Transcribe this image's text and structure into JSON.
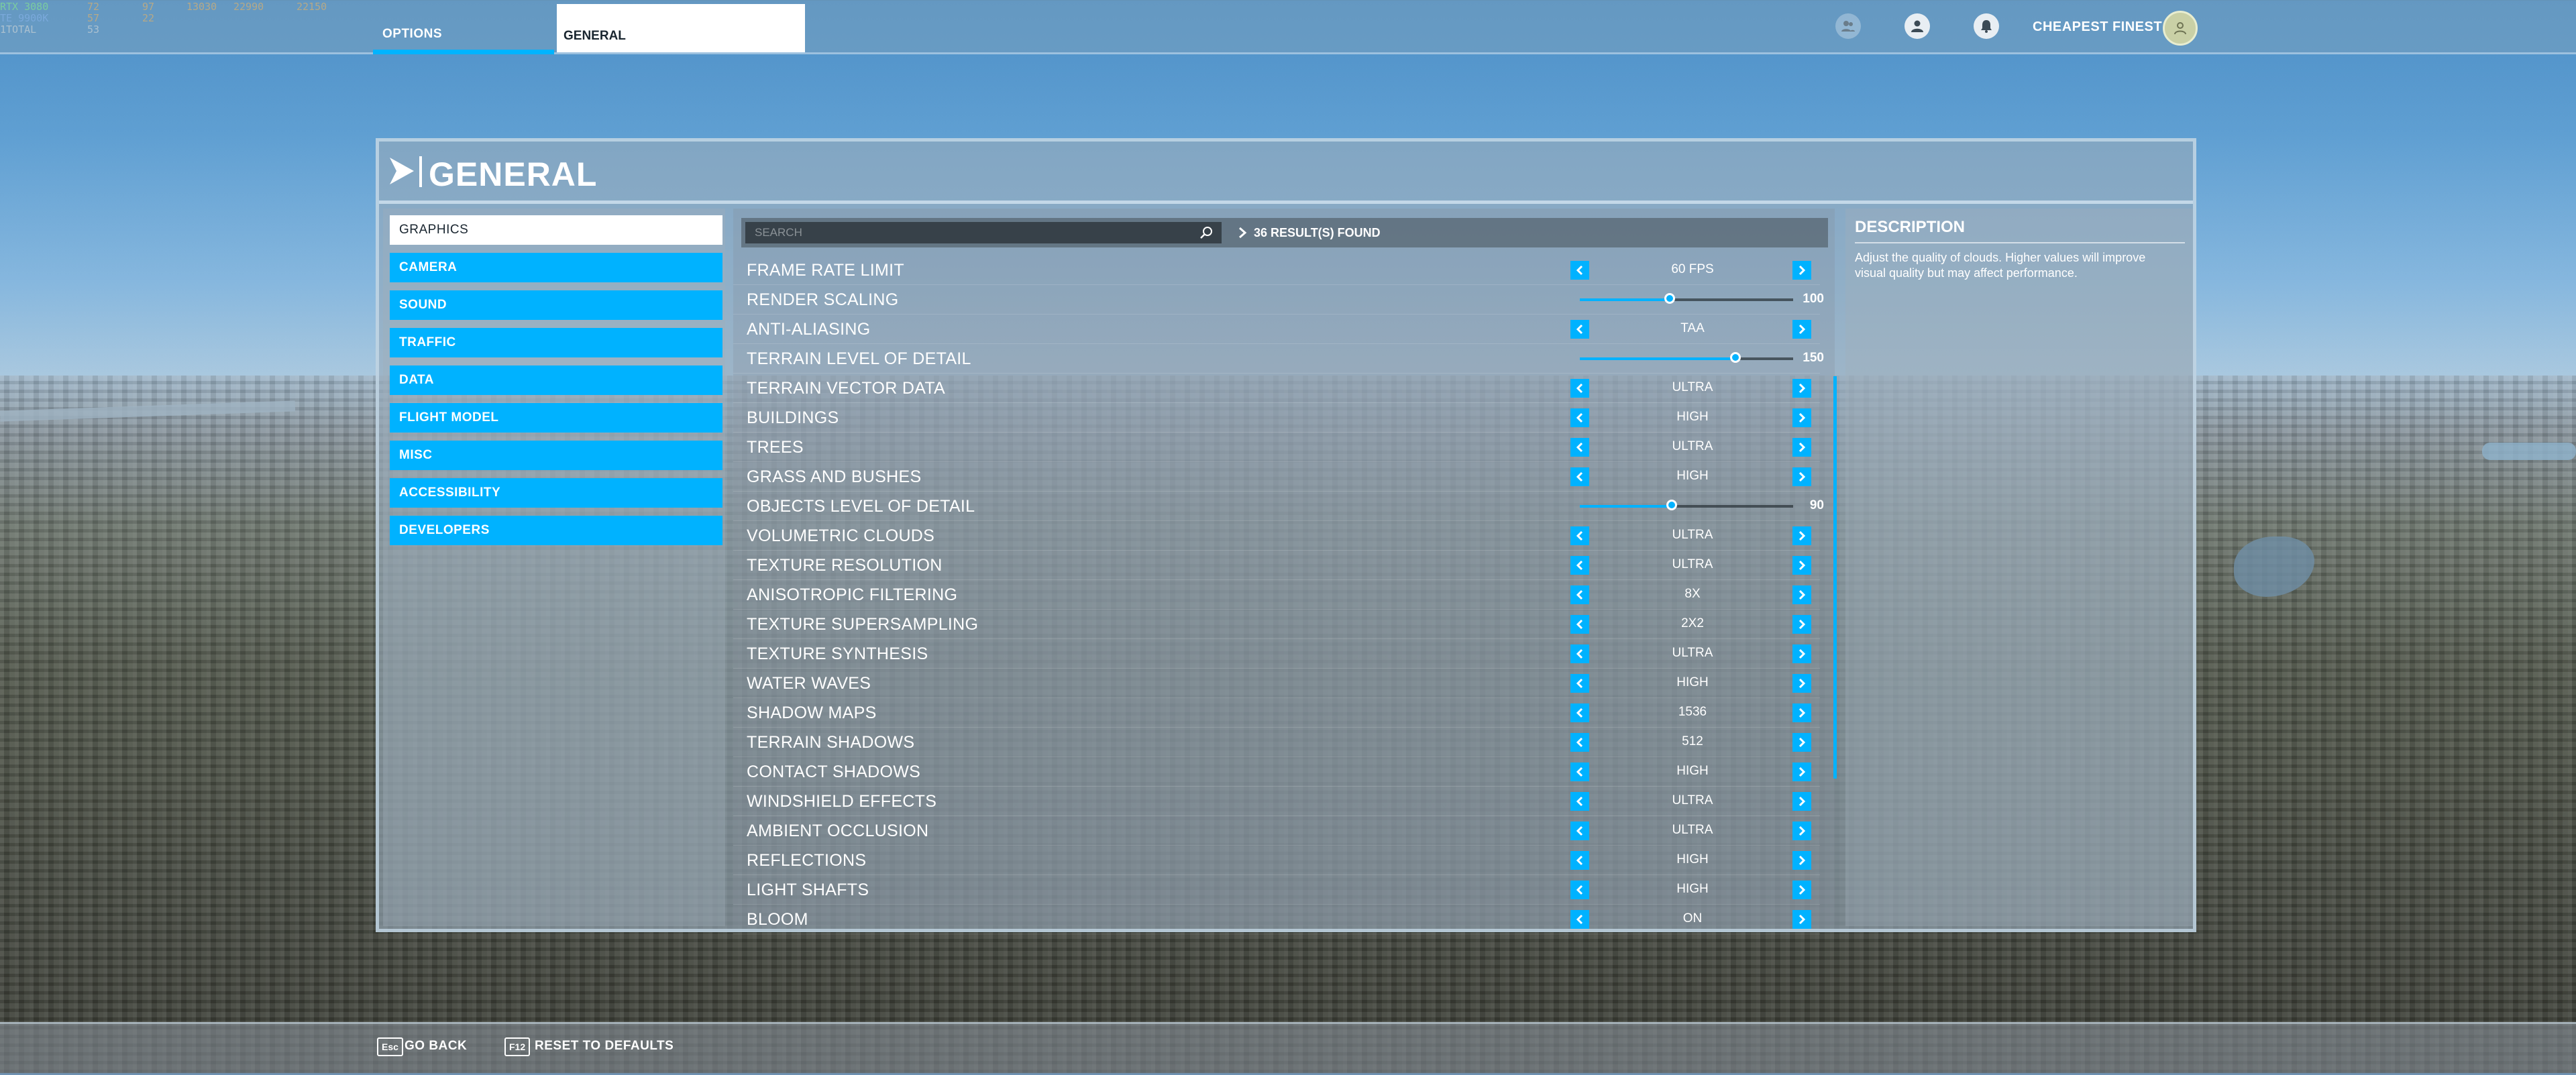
{
  "perf_overlay": {
    "rows": [
      [
        {
          "text": "RTX 3080",
          "color": "#7dff7d"
        },
        {
          "text": "72",
          "color": "#ffb347"
        },
        {
          "text": "97",
          "color": "#ffb347"
        },
        {
          "text": "13030",
          "color": "#ffb347"
        },
        {
          "text": "22990",
          "color": "#ffb347"
        },
        {
          "text": "22150",
          "color": "#ffb347"
        }
      ],
      [
        {
          "text": "TE 9900K",
          "color": "#7db4ff"
        },
        {
          "text": "57",
          "color": "#ffb347"
        },
        {
          "text": "22",
          "color": "#ffb347"
        }
      ],
      [
        {
          "text": "1TOTAL",
          "color": "#e6e6e6"
        },
        {
          "text": "53",
          "color": "#e6e6e6"
        }
      ]
    ]
  },
  "topbar": {
    "tab_options": "OPTIONS",
    "tab_general": "GENERAL",
    "username": "CHEAPEST FINEST",
    "icons": [
      "friends-icon",
      "profile-icon",
      "notifications-icon"
    ],
    "accent": "#00b2ff"
  },
  "panel": {
    "title": "GENERAL"
  },
  "sidebar": {
    "items": [
      {
        "label": "GRAPHICS",
        "active": true
      },
      {
        "label": "CAMERA",
        "active": false
      },
      {
        "label": "SOUND",
        "active": false
      },
      {
        "label": "TRAFFIC",
        "active": false
      },
      {
        "label": "DATA",
        "active": false
      },
      {
        "label": "FLIGHT MODEL",
        "active": false
      },
      {
        "label": "MISC",
        "active": false
      },
      {
        "label": "ACCESSIBILITY",
        "active": false
      },
      {
        "label": "DEVELOPERS",
        "active": false
      }
    ]
  },
  "search": {
    "placeholder": "SEARCH",
    "results": "36 RESULT(S) FOUND"
  },
  "settings": [
    {
      "label": "FRAME RATE LIMIT",
      "type": "select",
      "value": "60 FPS"
    },
    {
      "label": "RENDER SCALING",
      "type": "slider",
      "value": "100",
      "fraction": 0.42
    },
    {
      "label": "ANTI-ALIASING",
      "type": "select",
      "value": "TAA"
    },
    {
      "label": "TERRAIN LEVEL OF DETAIL",
      "type": "slider",
      "value": "150",
      "fraction": 0.73
    },
    {
      "label": "TERRAIN VECTOR DATA",
      "type": "select",
      "value": "ULTRA"
    },
    {
      "label": "BUILDINGS",
      "type": "select",
      "value": "HIGH"
    },
    {
      "label": "TREES",
      "type": "select",
      "value": "ULTRA"
    },
    {
      "label": "GRASS AND BUSHES",
      "type": "select",
      "value": "HIGH"
    },
    {
      "label": "OBJECTS LEVEL OF DETAIL",
      "type": "slider",
      "value": "90",
      "fraction": 0.43
    },
    {
      "label": "VOLUMETRIC CLOUDS",
      "type": "select",
      "value": "ULTRA"
    },
    {
      "label": "TEXTURE RESOLUTION",
      "type": "select",
      "value": "ULTRA"
    },
    {
      "label": "ANISOTROPIC FILTERING",
      "type": "select",
      "value": "8X"
    },
    {
      "label": "TEXTURE SUPERSAMPLING",
      "type": "select",
      "value": "2X2"
    },
    {
      "label": "TEXTURE SYNTHESIS",
      "type": "select",
      "value": "ULTRA"
    },
    {
      "label": "WATER WAVES",
      "type": "select",
      "value": "HIGH"
    },
    {
      "label": "SHADOW MAPS",
      "type": "select",
      "value": "1536"
    },
    {
      "label": "TERRAIN SHADOWS",
      "type": "select",
      "value": "512"
    },
    {
      "label": "CONTACT SHADOWS",
      "type": "select",
      "value": "HIGH"
    },
    {
      "label": "WINDSHIELD EFFECTS",
      "type": "select",
      "value": "ULTRA"
    },
    {
      "label": "AMBIENT OCCLUSION",
      "type": "select",
      "value": "ULTRA"
    },
    {
      "label": "REFLECTIONS",
      "type": "select",
      "value": "HIGH"
    },
    {
      "label": "LIGHT SHAFTS",
      "type": "select",
      "value": "HIGH"
    },
    {
      "label": "BLOOM",
      "type": "select",
      "value": "ON"
    }
  ],
  "description": {
    "title": "DESCRIPTION",
    "text": "Adjust the quality of clouds. Higher values will improve visual quality but may affect performance."
  },
  "bottombar": {
    "back_key": "Esc",
    "back_label": "GO BACK",
    "reset_key": "F12",
    "reset_label": "RESET TO DEFAULTS"
  }
}
